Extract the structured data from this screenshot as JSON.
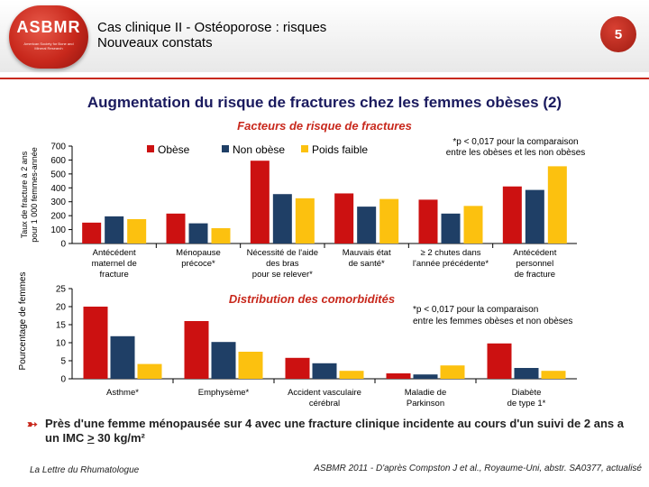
{
  "header": {
    "logo_text": "ASBMR",
    "logo_sub": "American Society for Bone and Mineral Research",
    "title_line1": "Cas clinique II - Ostéoporose : risques",
    "title_line2": "Nouveaux constats",
    "page_number": "5"
  },
  "main_title": "Augmentation du risque de fractures chez les femmes obèses (2)",
  "colors": {
    "obese": "#cc1111",
    "non_obese": "#1f3f66",
    "poids_faible": "#fcc10f"
  },
  "chart_data": [
    {
      "type": "bar",
      "title": "Facteurs de risque de fractures",
      "ylabel": "Taux de fracture à 2 ans pour 1 000 femmes-année",
      "ylabel_lines": [
        "Taux de fracture à 2 ans",
        "pour 1 000 femmes-année"
      ],
      "ylim": [
        0,
        700
      ],
      "yticks": [
        "0",
        "100",
        "200",
        "300",
        "400",
        "500",
        "600",
        "700"
      ],
      "legend": [
        "Obèse",
        "Non obèse",
        "Poids faible"
      ],
      "note_lines": [
        "*p < 0,017 pour la comparaison",
        "entre les obèses et les non obèses"
      ],
      "categories": [
        [
          "Antécédent",
          "maternel de",
          "fracture"
        ],
        [
          "Ménopause",
          "précoce*"
        ],
        [
          "Nécessité de l'aide",
          "des bras",
          "pour se relever*"
        ],
        [
          "Mauvais état",
          "de santé*"
        ],
        [
          "≥ 2 chutes dans",
          "l'année précédente*"
        ],
        [
          "Antécédent",
          "personnel",
          "de fracture"
        ]
      ],
      "series": [
        {
          "name": "Obèse",
          "values": [
            150,
            215,
            595,
            360,
            315,
            410
          ]
        },
        {
          "name": "Non obèse",
          "values": [
            195,
            145,
            355,
            265,
            215,
            385
          ]
        },
        {
          "name": "Poids faible",
          "values": [
            175,
            110,
            325,
            320,
            270,
            555
          ]
        }
      ]
    },
    {
      "type": "bar",
      "title": "Distribution des comorbidités",
      "ylabel": "Pourcentage de femmes",
      "ylim": [
        0,
        25
      ],
      "yticks": [
        "0",
        "5",
        "10",
        "15",
        "20",
        "25"
      ],
      "note_lines": [
        "*p < 0,017  pour la comparaison",
        "entre les femmes obèses et non obèses"
      ],
      "categories": [
        [
          "Asthme*"
        ],
        [
          "Emphysème*"
        ],
        [
          "Accident vasculaire",
          "cérébral"
        ],
        [
          "Maladie de",
          "Parkinson"
        ],
        [
          "Diabète",
          "de type 1*"
        ]
      ],
      "series": [
        {
          "name": "Obèse",
          "values": [
            20,
            16,
            5.8,
            1.5,
            9.8
          ]
        },
        {
          "name": "Non obèse",
          "values": [
            11.8,
            10.2,
            4.3,
            1.2,
            3
          ]
        },
        {
          "name": "Poids faible",
          "values": [
            4.1,
            7.5,
            2.2,
            3.7,
            2.2
          ]
        }
      ]
    }
  ],
  "conclusion": {
    "part1": "Près d'une femme ménopausée sur 4 avec une fracture clinique incidente au cours d'un suivi de 2 ans a un IMC ",
    "op": ">",
    "part2": " 30 kg/m²"
  },
  "footer": {
    "left": "La Lettre du Rhumatologue",
    "right": "ASBMR 2011 - D'après Compston J et al., Royaume-Uni, abstr. SA0377, actualisé"
  }
}
